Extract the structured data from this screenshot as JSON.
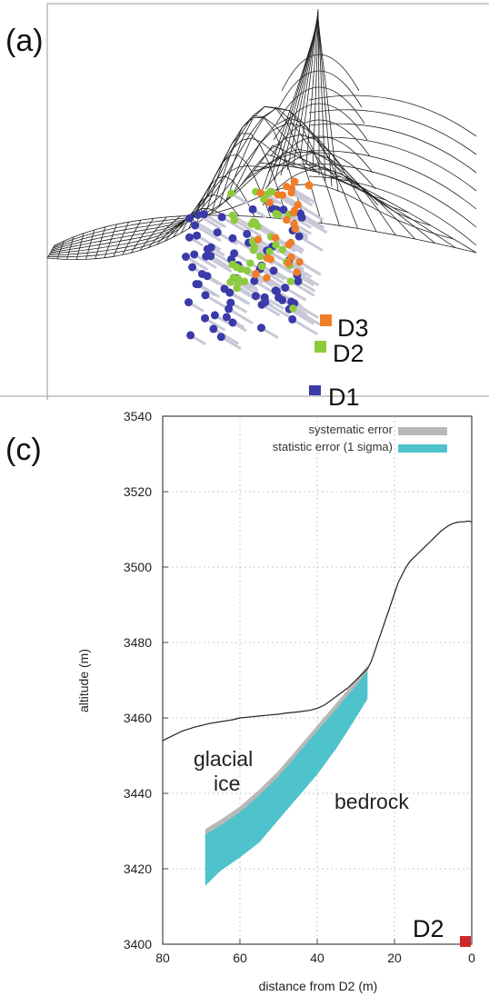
{
  "panel_a": {
    "tag": "(a)",
    "colors": {
      "D1": "#3a3aa8",
      "D2": "#8ccc3c",
      "D3": "#f07d28",
      "mesh": "#222222",
      "line": "#c8c8d6"
    },
    "detectors": [
      {
        "label": "D3",
        "color": "#f07d28"
      },
      {
        "label": "D2",
        "color": "#8ccc3c"
      },
      {
        "label": "D1",
        "color": "#3a3aa8"
      }
    ]
  },
  "panel_c": {
    "tag": "(c)",
    "station": {
      "label": "D2",
      "color": "#cc2a2a"
    },
    "annotations": {
      "ice_line1": "glacial",
      "ice_line2": "ice",
      "rock": "bedrock"
    }
  },
  "chart_data": {
    "type": "area",
    "xlabel": "distance from D2 (m)",
    "ylabel": "altitude (m)",
    "xlim": [
      80,
      0
    ],
    "ylim": [
      3400,
      3540
    ],
    "x_reversed": true,
    "xticks": [
      80,
      60,
      40,
      20,
      0
    ],
    "yticks": [
      3400,
      3420,
      3440,
      3460,
      3480,
      3500,
      3520,
      3540
    ],
    "grid": true,
    "legend_position": "top-right",
    "legend": [
      {
        "label": "systematic error",
        "color": "#b8b8b8"
      },
      {
        "label": "statistic error (1 sigma)",
        "color": "#4fc3cc"
      }
    ],
    "series": [
      {
        "kind": "line",
        "color": "#222222",
        "x": [
          80,
          78,
          75,
          72,
          70,
          68,
          65,
          62,
          60,
          58,
          55,
          52,
          50,
          48,
          45,
          42,
          40,
          38,
          36,
          34,
          32,
          30,
          29,
          28,
          27,
          26,
          25,
          24,
          23,
          22,
          21,
          20,
          19,
          18,
          17,
          16,
          15,
          14,
          13,
          12,
          11,
          10,
          9,
          8,
          7,
          6,
          5,
          4,
          3,
          2,
          1,
          0
        ],
        "y": [
          3454,
          3455,
          3456.5,
          3457.5,
          3458,
          3458.5,
          3459,
          3459.5,
          3460,
          3460.2,
          3460.5,
          3460.8,
          3461,
          3461.3,
          3461.6,
          3462,
          3462.5,
          3463.5,
          3465,
          3466.5,
          3468,
          3470,
          3471,
          3472,
          3473,
          3475,
          3478,
          3481,
          3484,
          3487,
          3490,
          3493,
          3496,
          3498,
          3500,
          3501.5,
          3502.5,
          3503.5,
          3504.5,
          3505.5,
          3506.5,
          3507.5,
          3508.5,
          3509.5,
          3510.3,
          3511,
          3511.5,
          3511.8,
          3512,
          3512,
          3512.2,
          3512
        ]
      },
      {
        "kind": "band",
        "name": "systematic error",
        "color": "#b8b8b8",
        "x": [
          69,
          65,
          60,
          55,
          50,
          45,
          40,
          35,
          30,
          27
        ],
        "lower": [
          3416.5,
          3420,
          3423.5,
          3428,
          3434,
          3440,
          3446,
          3453,
          3461,
          3466
        ],
        "upper": [
          3430.5,
          3433,
          3436.5,
          3441,
          3446,
          3452,
          3458,
          3464,
          3470,
          3474
        ]
      },
      {
        "kind": "band",
        "name": "statistic error (1 sigma)",
        "color": "#4fc3cc",
        "x": [
          69,
          65,
          60,
          55,
          50,
          45,
          40,
          35,
          30,
          27
        ],
        "lower": [
          3415.5,
          3419.5,
          3423,
          3427,
          3433,
          3439,
          3445,
          3452,
          3460,
          3465
        ],
        "upper": [
          3429,
          3431.5,
          3435,
          3439.5,
          3444.5,
          3450.5,
          3456.5,
          3462.5,
          3468.5,
          3472.5
        ]
      }
    ]
  }
}
